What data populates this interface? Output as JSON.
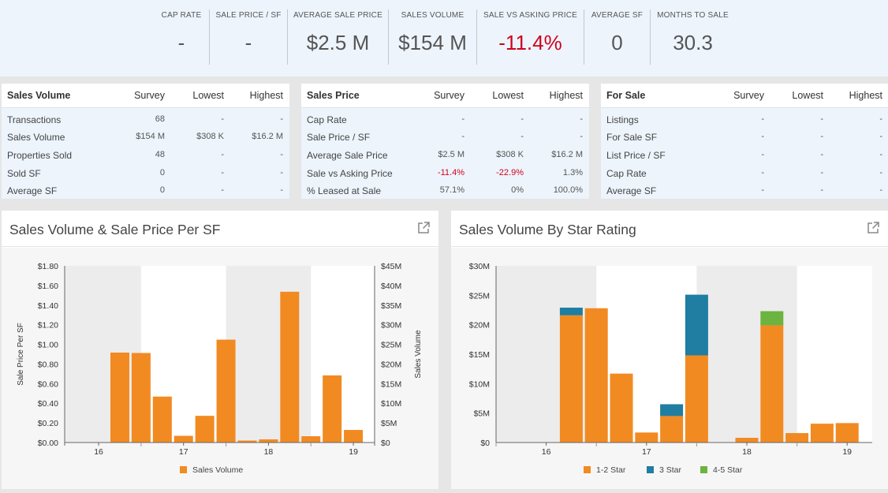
{
  "kpis": [
    {
      "label": "CAP RATE",
      "value": "-",
      "negative": false
    },
    {
      "label": "SALE PRICE / SF",
      "value": "-",
      "negative": false
    },
    {
      "label": "AVERAGE SALE PRICE",
      "value": "$2.5 M",
      "negative": false
    },
    {
      "label": "SALES VOLUME",
      "value": "$154 M",
      "negative": false
    },
    {
      "label": "SALE VS ASKING PRICE",
      "value": "-11.4%",
      "negative": true
    },
    {
      "label": "AVERAGE SF",
      "value": "0",
      "negative": false
    },
    {
      "label": "MONTHS TO SALE",
      "value": "30.3",
      "negative": false
    }
  ],
  "tables": [
    {
      "title": "Sales Volume",
      "columns": [
        "Survey",
        "Lowest",
        "Highest"
      ],
      "rows": [
        {
          "label": "Transactions",
          "values": [
            "68",
            "-",
            "-"
          ]
        },
        {
          "label": "Sales Volume",
          "values": [
            "$154 M",
            "$308 K",
            "$16.2 M"
          ]
        },
        {
          "label": "Properties Sold",
          "values": [
            "48",
            "-",
            "-"
          ]
        },
        {
          "label": "Sold SF",
          "values": [
            "0",
            "-",
            "-"
          ]
        },
        {
          "label": "Average SF",
          "values": [
            "0",
            "-",
            "-"
          ]
        }
      ]
    },
    {
      "title": "Sales Price",
      "columns": [
        "Survey",
        "Lowest",
        "Highest"
      ],
      "rows": [
        {
          "label": "Cap Rate",
          "values": [
            "-",
            "-",
            "-"
          ]
        },
        {
          "label": "Sale Price / SF",
          "values": [
            "-",
            "-",
            "-"
          ]
        },
        {
          "label": "Average Sale Price",
          "values": [
            "$2.5 M",
            "$308 K",
            "$16.2 M"
          ]
        },
        {
          "label": "Sale vs Asking Price",
          "values": [
            "-11.4%",
            "-22.9%",
            "1.3%"
          ]
        },
        {
          "label": "% Leased at Sale",
          "values": [
            "57.1%",
            "0%",
            "100.0%"
          ]
        }
      ]
    },
    {
      "title": "For Sale",
      "columns": [
        "Survey",
        "Lowest",
        "Highest"
      ],
      "rows": [
        {
          "label": "Listings",
          "values": [
            "-",
            "-",
            "-"
          ]
        },
        {
          "label": "For Sale SF",
          "values": [
            "-",
            "-",
            "-"
          ]
        },
        {
          "label": "List Price / SF",
          "values": [
            "-",
            "-",
            "-"
          ]
        },
        {
          "label": "Cap Rate",
          "values": [
            "-",
            "-",
            "-"
          ]
        },
        {
          "label": "Average SF",
          "values": [
            "-",
            "-",
            "-"
          ]
        }
      ]
    }
  ],
  "icons": {
    "expand": "external-link-icon"
  },
  "colors": {
    "orange": "#f28a22",
    "teal": "#1f7ea1",
    "green": "#6db33f",
    "negative": "#d0021b"
  },
  "chart_data": [
    {
      "type": "bar",
      "title": "Sales Volume & Sale Price Per SF",
      "xlabel": "",
      "ylabel_left": "Sale Price Per SF",
      "ylabel_right": "Sales Volume",
      "x_ticks": [
        "16",
        "17",
        "18",
        "19"
      ],
      "left_ticks": [
        "$0.00",
        "$0.20",
        "$0.40",
        "$0.60",
        "$0.80",
        "$1.00",
        "$1.20",
        "$1.40",
        "$1.60",
        "$1.80"
      ],
      "right_ticks": [
        "$0",
        "$5M",
        "$10M",
        "$15M",
        "$20M",
        "$25M",
        "$30M",
        "$35M",
        "$40M",
        "$45M"
      ],
      "ylim_right": [
        0,
        45
      ],
      "x_start": 15.6,
      "x_end": 19.25,
      "shaded_years": [
        16,
        18
      ],
      "year_start": 15.5,
      "quarters": [
        16.0,
        16.25,
        16.5,
        16.75,
        17.0,
        17.25,
        17.5,
        17.75,
        18.0,
        18.25,
        18.5,
        18.75,
        19.0
      ],
      "series": [
        {
          "name": "Sales Volume",
          "color": "#f28a22",
          "values": [
            0,
            22.9,
            22.8,
            11.7,
            1.7,
            6.8,
            26.2,
            0.5,
            0.8,
            38.4,
            1.6,
            17.1,
            3.2
          ]
        }
      ],
      "legend": [
        {
          "name": "Sales Volume",
          "color": "#f28a22"
        }
      ]
    },
    {
      "type": "bar",
      "stacked": true,
      "title": "Sales Volume By Star Rating",
      "xlabel": "",
      "ylabel": "",
      "x_ticks": [
        "16",
        "17",
        "18",
        "19"
      ],
      "y_ticks": [
        "$0",
        "$5M",
        "$10M",
        "$15M",
        "$20M",
        "$25M",
        "$30M"
      ],
      "ylim": [
        0,
        30
      ],
      "x_start": 15.5,
      "x_end": 19.25,
      "shaded_years": [
        16,
        18
      ],
      "year_start": 15.5,
      "quarters": [
        16.0,
        16.25,
        16.5,
        16.75,
        17.0,
        17.25,
        17.5,
        17.75,
        18.0,
        18.25,
        18.5,
        18.75,
        19.0
      ],
      "series": [
        {
          "name": "1-2 Star",
          "color": "#f28a22",
          "values": [
            0,
            21.6,
            22.8,
            11.7,
            1.7,
            4.5,
            14.8,
            0,
            0.8,
            19.9,
            1.6,
            3.2,
            3.3
          ]
        },
        {
          "name": "3 Star",
          "color": "#1f7ea1",
          "values": [
            0,
            1.3,
            0,
            0,
            0,
            2.0,
            10.3,
            0,
            0,
            0,
            0,
            0,
            0
          ]
        },
        {
          "name": "4-5 Star",
          "color": "#6db33f",
          "values": [
            0,
            0,
            0,
            0,
            0,
            0,
            0,
            0,
            0,
            2.4,
            0,
            0,
            0
          ]
        }
      ],
      "legend": [
        {
          "name": "1-2 Star",
          "color": "#f28a22"
        },
        {
          "name": "3 Star",
          "color": "#1f7ea1"
        },
        {
          "name": "4-5 Star",
          "color": "#6db33f"
        }
      ]
    }
  ]
}
